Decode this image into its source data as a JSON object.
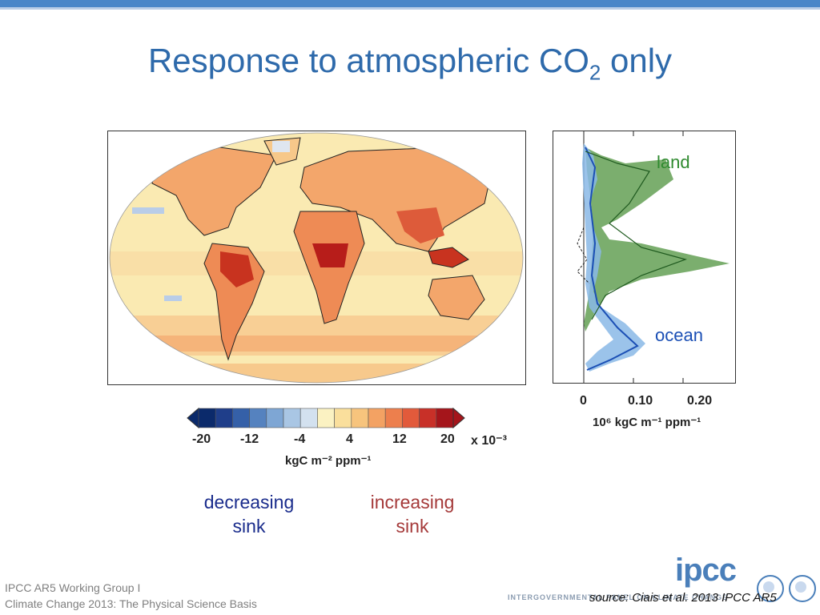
{
  "title": {
    "main": "Response to atmospheric CO",
    "subscript": "2",
    "suffix": " only"
  },
  "profile": {
    "land_label": "land",
    "ocean_label": "ocean",
    "x_ticks": [
      "0",
      "0.10",
      "0.20"
    ],
    "x_unit": "10⁶ kgC m⁻¹ ppm⁻¹"
  },
  "colorbar": {
    "ticks": [
      "-20",
      "-12",
      "-4",
      "4",
      "12",
      "20"
    ],
    "scale": "x 10⁻³",
    "unit": "kgC m⁻² ppm⁻¹",
    "colors": [
      "#0b2a6b",
      "#1f3e8a",
      "#3560a8",
      "#5582bf",
      "#7ea6d4",
      "#a9c6e4",
      "#d3e1ef",
      "#fbf2c2",
      "#fadf9c",
      "#f7c47d",
      "#f3a263",
      "#ed7f4d",
      "#e25a3b",
      "#c83028",
      "#a5151b"
    ]
  },
  "legend": {
    "decreasing": [
      "decreasing",
      "sink"
    ],
    "increasing": [
      "increasing",
      "sink"
    ]
  },
  "footer": {
    "line1": "IPCC AR5 Working Group I",
    "line2": "Climate Change 2013:  The Physical Science Basis"
  },
  "branding": {
    "logo": "ipcc",
    "org_strip": "INTERGOVERNMENTAL PANEL ON CLIMATE CHANGE"
  },
  "source": "source: Ciais et al. 2013 IPCC AR5",
  "colors": {
    "title": "#2e6aab",
    "land": "#2f8a2f",
    "ocean": "#1b4fb5",
    "decreasing": "#1a2c8c",
    "increasing": "#a53a3a"
  }
}
